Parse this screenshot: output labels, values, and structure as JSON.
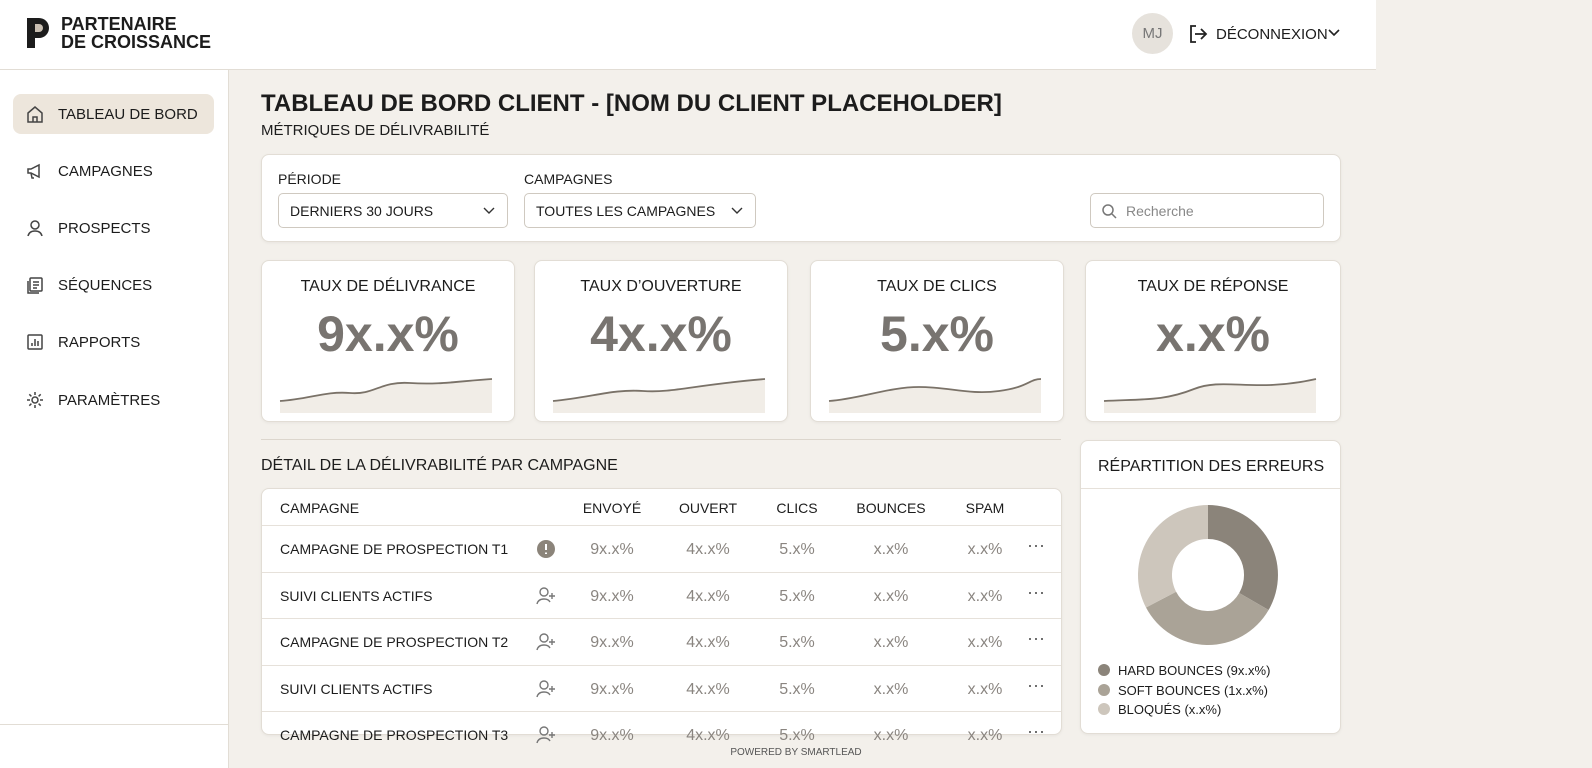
{
  "header": {
    "logo_line1": "PARTENAIRE",
    "logo_line2": "DE CROISSANCE",
    "avatar": "MJ",
    "logout": "DÉCONNEXION"
  },
  "nav": [
    "TABLEAU DE BORD",
    "CAMPAGNES",
    "PROSPECTS",
    "SÉQUENCES",
    "RAPPORTS",
    "PARAMÈTRES"
  ],
  "page": {
    "title": "TABLEAU DE BORD CLIENT - [NOM DU CLIENT PLACEHOLDER]",
    "subtitle": "MÉTRIQUES DE DÉLIVRABILITÉ"
  },
  "filters": {
    "period_label": "PÉRIODE",
    "period_value": "DERNIERS 30 JOURS",
    "campaigns_label": "CAMPAGNES",
    "campaigns_value": "TOUTES LES CAMPAGNES",
    "search_placeholder": "Recherche"
  },
  "metrics": [
    {
      "label": "TAUX DE DÉLIVRANCE",
      "value": "9x.x%"
    },
    {
      "label": "TAUX D’OUVERTURE",
      "value": "4x.x%"
    },
    {
      "label": "TAUX DE CLICS",
      "value": "5.x%"
    },
    {
      "label": "TAUX DE RÉPONSE",
      "value": "x.x%"
    }
  ],
  "table": {
    "title": "DÉTAIL DE LA DÉLIVRABILITÉ PAR CAMPAGNE",
    "columns": [
      "CAMPAGNE",
      "ENVOYÉ",
      "OUVERT",
      "CLICS",
      "BOUNCES",
      "SPAM"
    ],
    "rows": [
      [
        "CAMPAGNE DE PROSPECTION T1",
        "9x.x%",
        "4x.x%",
        "5.x%",
        "x.x%",
        "x.x%"
      ],
      [
        "SUIVI CLIENTS ACTIFS",
        "9x.x%",
        "4x.x%",
        "5.x%",
        "x.x%",
        "x.x%"
      ],
      [
        "CAMPAGNE DE PROSPECTION T2",
        "9x.x%",
        "4x.x%",
        "5.x%",
        "x.x%",
        "x.x%"
      ],
      [
        "SUIVI CLIENTS ACTIFS",
        "9x.x%",
        "4x.x%",
        "5.x%",
        "x.x%",
        "x.x%"
      ],
      [
        "CAMPAGNE DE PROSPECTION T3",
        "9x.x%",
        "4x.x%",
        "5.x%",
        "x.x%",
        "x.x%"
      ]
    ]
  },
  "errors": {
    "title": "RÉPARTITION DES ERREURS",
    "legend": [
      "HARD BOUNCES (9x.x%)",
      "SOFT BOUNCES (1x.x%)",
      "BLOQUÉS (x.x%)"
    ]
  },
  "footer": "POWERED BY SMARTLEAD"
}
